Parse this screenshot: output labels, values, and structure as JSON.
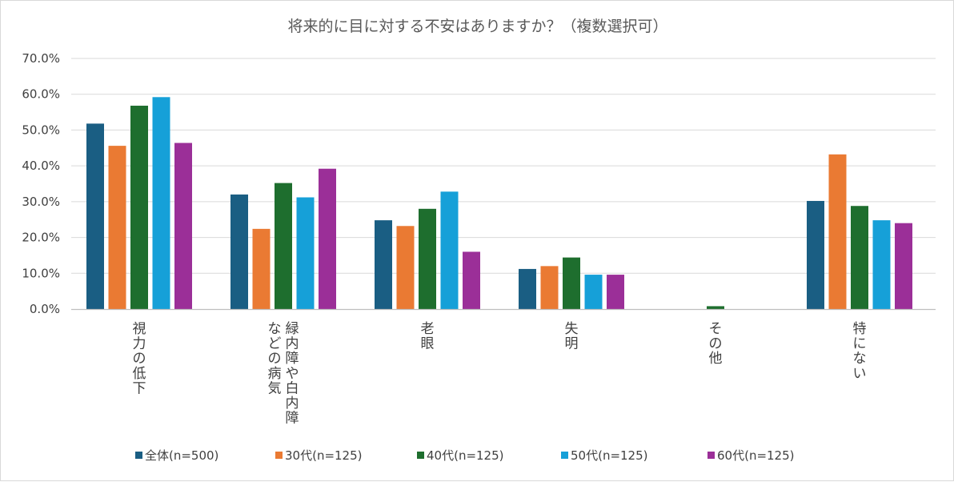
{
  "chart_data": {
    "type": "bar",
    "title": "将来的に目に対する不安はありますか？（複数選択可）",
    "xlabel": "",
    "ylabel": "",
    "ylim": [
      0,
      70
    ],
    "y_ticks": [
      "0.0%",
      "10.0%",
      "20.0%",
      "30.0%",
      "40.0%",
      "50.0%",
      "60.0%",
      "70.0%"
    ],
    "grid": true,
    "legend_position": "bottom",
    "categories": [
      [
        "視力の低下"
      ],
      [
        "緑内障や白内障",
        "などの病気"
      ],
      [
        "老眼"
      ],
      [
        "失明"
      ],
      [
        "その他"
      ],
      [
        "特にない"
      ]
    ],
    "series": [
      {
        "name": "全体(n=500)",
        "color": "#1a5e83",
        "values": [
          51.8,
          32.0,
          24.8,
          11.2,
          0.0,
          30.2
        ]
      },
      {
        "name": "30代(n=125)",
        "color": "#ea7a33",
        "values": [
          45.6,
          22.4,
          23.2,
          12.0,
          0.0,
          43.2
        ]
      },
      {
        "name": "40代(n=125)",
        "color": "#1e6e2e",
        "values": [
          56.8,
          35.2,
          28.0,
          14.4,
          0.8,
          28.8
        ]
      },
      {
        "name": "50代(n=125)",
        "color": "#16a0d8",
        "values": [
          59.2,
          31.2,
          32.8,
          9.6,
          0.0,
          24.8
        ]
      },
      {
        "name": "60代(n=125)",
        "color": "#9b2f98",
        "values": [
          46.4,
          39.2,
          16.0,
          9.6,
          0.0,
          24.0
        ]
      }
    ]
  }
}
